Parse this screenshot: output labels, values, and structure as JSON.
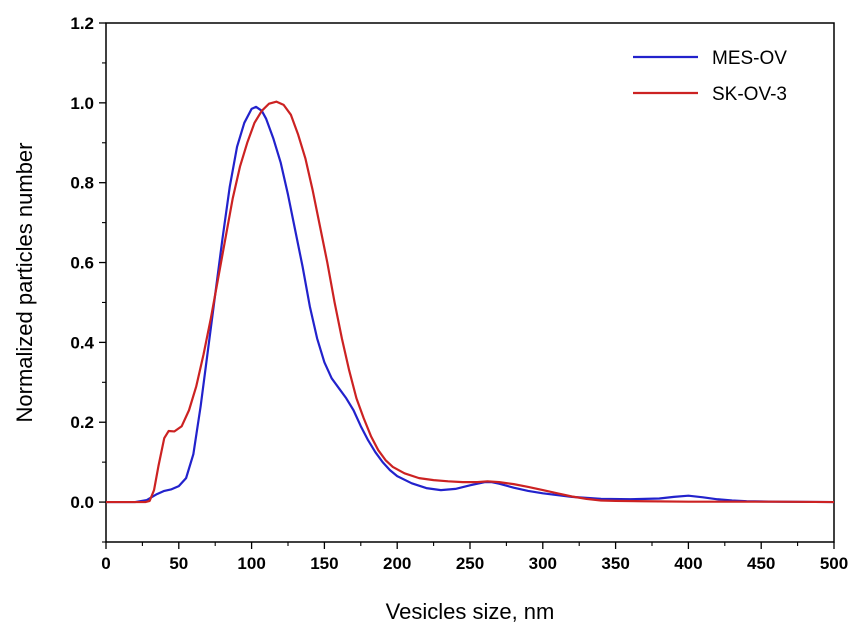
{
  "chart_data": {
    "type": "line",
    "xlabel": "Vesicles size, nm",
    "ylabel": "Normalized particles number",
    "xlim": [
      0,
      500
    ],
    "ylim": [
      -0.1,
      1.2
    ],
    "x_ticks": [
      0,
      50,
      100,
      150,
      200,
      250,
      300,
      350,
      400,
      450,
      500
    ],
    "x_tick_labels": [
      "0",
      "50",
      "100",
      "150",
      "200",
      "250",
      "300",
      "350",
      "400",
      "450",
      "500"
    ],
    "y_ticks": [
      0.0,
      0.2,
      0.4,
      0.6,
      0.8,
      1.0,
      1.2
    ],
    "y_tick_labels": [
      "0.0",
      "0.2",
      "0.4",
      "0.6",
      "0.8",
      "1.0",
      "1.2"
    ],
    "grid": false,
    "legend_position": "top-right",
    "series": [
      {
        "name": "MES-OV",
        "color": "#2222cc",
        "points": [
          [
            0,
            0.0
          ],
          [
            20,
            0.0
          ],
          [
            28,
            0.005
          ],
          [
            35,
            0.02
          ],
          [
            40,
            0.028
          ],
          [
            45,
            0.032
          ],
          [
            50,
            0.04
          ],
          [
            55,
            0.06
          ],
          [
            60,
            0.12
          ],
          [
            65,
            0.24
          ],
          [
            70,
            0.38
          ],
          [
            75,
            0.52
          ],
          [
            80,
            0.66
          ],
          [
            85,
            0.79
          ],
          [
            90,
            0.89
          ],
          [
            95,
            0.95
          ],
          [
            100,
            0.985
          ],
          [
            103,
            0.99
          ],
          [
            107,
            0.98
          ],
          [
            110,
            0.96
          ],
          [
            115,
            0.91
          ],
          [
            120,
            0.85
          ],
          [
            125,
            0.77
          ],
          [
            130,
            0.68
          ],
          [
            135,
            0.59
          ],
          [
            140,
            0.49
          ],
          [
            145,
            0.41
          ],
          [
            150,
            0.35
          ],
          [
            155,
            0.31
          ],
          [
            160,
            0.285
          ],
          [
            165,
            0.26
          ],
          [
            170,
            0.23
          ],
          [
            175,
            0.19
          ],
          [
            180,
            0.155
          ],
          [
            185,
            0.125
          ],
          [
            190,
            0.1
          ],
          [
            195,
            0.08
          ],
          [
            200,
            0.065
          ],
          [
            210,
            0.047
          ],
          [
            220,
            0.035
          ],
          [
            230,
            0.03
          ],
          [
            240,
            0.033
          ],
          [
            250,
            0.042
          ],
          [
            260,
            0.05
          ],
          [
            265,
            0.05
          ],
          [
            270,
            0.046
          ],
          [
            280,
            0.036
          ],
          [
            290,
            0.028
          ],
          [
            300,
            0.022
          ],
          [
            320,
            0.013
          ],
          [
            340,
            0.008
          ],
          [
            360,
            0.007
          ],
          [
            380,
            0.009
          ],
          [
            390,
            0.013
          ],
          [
            400,
            0.016
          ],
          [
            410,
            0.012
          ],
          [
            420,
            0.007
          ],
          [
            430,
            0.004
          ],
          [
            440,
            0.002
          ],
          [
            460,
            0.001
          ],
          [
            500,
            0.0
          ]
        ]
      },
      {
        "name": "SK-OV-3",
        "color": "#cc2222",
        "points": [
          [
            0,
            0.0
          ],
          [
            27,
            0.0
          ],
          [
            30,
            0.003
          ],
          [
            33,
            0.03
          ],
          [
            36,
            0.09
          ],
          [
            40,
            0.16
          ],
          [
            43,
            0.178
          ],
          [
            47,
            0.177
          ],
          [
            52,
            0.19
          ],
          [
            57,
            0.23
          ],
          [
            62,
            0.29
          ],
          [
            67,
            0.37
          ],
          [
            72,
            0.46
          ],
          [
            77,
            0.56
          ],
          [
            82,
            0.66
          ],
          [
            87,
            0.76
          ],
          [
            92,
            0.84
          ],
          [
            97,
            0.9
          ],
          [
            102,
            0.95
          ],
          [
            107,
            0.98
          ],
          [
            112,
            0.998
          ],
          [
            117,
            1.003
          ],
          [
            122,
            0.995
          ],
          [
            127,
            0.97
          ],
          [
            132,
            0.92
          ],
          [
            137,
            0.86
          ],
          [
            142,
            0.78
          ],
          [
            147,
            0.69
          ],
          [
            152,
            0.6
          ],
          [
            157,
            0.5
          ],
          [
            162,
            0.41
          ],
          [
            167,
            0.33
          ],
          [
            172,
            0.26
          ],
          [
            177,
            0.21
          ],
          [
            182,
            0.165
          ],
          [
            187,
            0.13
          ],
          [
            192,
            0.105
          ],
          [
            197,
            0.088
          ],
          [
            205,
            0.072
          ],
          [
            215,
            0.06
          ],
          [
            225,
            0.055
          ],
          [
            235,
            0.052
          ],
          [
            245,
            0.05
          ],
          [
            255,
            0.05
          ],
          [
            262,
            0.052
          ],
          [
            270,
            0.05
          ],
          [
            280,
            0.045
          ],
          [
            290,
            0.038
          ],
          [
            300,
            0.03
          ],
          [
            310,
            0.022
          ],
          [
            320,
            0.014
          ],
          [
            330,
            0.008
          ],
          [
            340,
            0.004
          ],
          [
            350,
            0.003
          ],
          [
            370,
            0.002
          ],
          [
            400,
            0.001
          ],
          [
            430,
            0.001
          ],
          [
            460,
            0.001
          ],
          [
            500,
            0.0
          ]
        ]
      }
    ]
  }
}
